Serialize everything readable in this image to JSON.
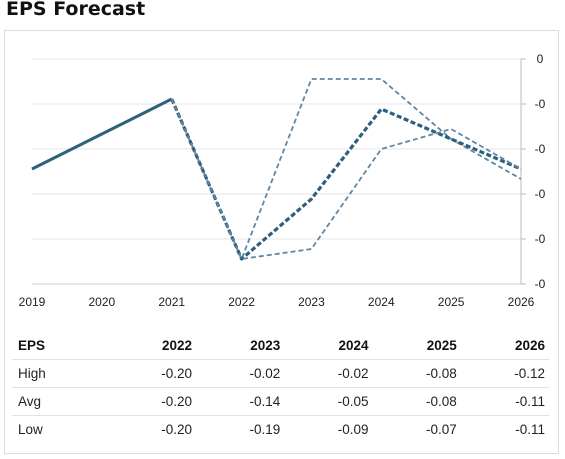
{
  "title": "EPS Forecast",
  "colors": {
    "actual": "#2f5f7c",
    "avg": "#2f5f7c",
    "range": "#5f87a3",
    "grid": "#e6e6e6"
  },
  "chart_data": {
    "type": "line",
    "title": "EPS Forecast",
    "x": [
      "2019",
      "2020",
      "2021",
      "2022",
      "2023",
      "2024",
      "2025",
      "2026"
    ],
    "y_tick_labels": [
      "0",
      "-0",
      "-0",
      "-0",
      "-0",
      "-0"
    ],
    "ylim": [
      -0.225,
      0.0
    ],
    "grid": true,
    "series": [
      {
        "key": "actual",
        "style": "solid",
        "x": [
          "2019",
          "2020",
          "2021"
        ],
        "values": [
          -0.11,
          -0.075,
          -0.04
        ]
      },
      {
        "name": "High",
        "style": "dashed",
        "x": [
          "2021",
          "2022",
          "2023",
          "2024",
          "2025",
          "2026"
        ],
        "values": [
          -0.04,
          -0.2,
          -0.02,
          -0.02,
          -0.08,
          -0.12
        ]
      },
      {
        "name": "Avg",
        "style": "dashed-bold",
        "x": [
          "2021",
          "2022",
          "2023",
          "2024",
          "2025",
          "2026"
        ],
        "values": [
          -0.04,
          -0.2,
          -0.14,
          -0.05,
          -0.08,
          -0.11
        ]
      },
      {
        "name": "Low",
        "style": "dashed",
        "x": [
          "2021",
          "2022",
          "2023",
          "2024",
          "2025",
          "2026"
        ],
        "values": [
          -0.04,
          -0.2,
          -0.19,
          -0.09,
          -0.07,
          -0.11
        ]
      }
    ]
  },
  "table": {
    "headers": [
      "EPS",
      "2022",
      "2023",
      "2024",
      "2025",
      "2026"
    ],
    "rows": [
      {
        "label": "High",
        "values": [
          "-0.20",
          "-0.02",
          "-0.02",
          "-0.08",
          "-0.12"
        ]
      },
      {
        "label": "Avg",
        "values": [
          "-0.20",
          "-0.14",
          "-0.05",
          "-0.08",
          "-0.11"
        ]
      },
      {
        "label": "Low",
        "values": [
          "-0.20",
          "-0.19",
          "-0.09",
          "-0.07",
          "-0.11"
        ]
      }
    ]
  }
}
